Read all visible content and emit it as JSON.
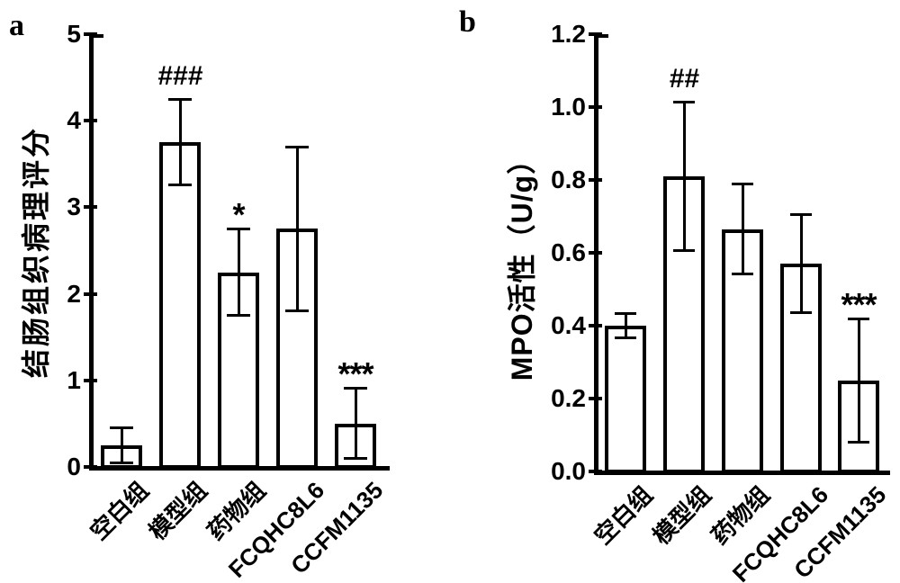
{
  "figure_bg": "#ffffff",
  "ink_color": "#000000",
  "chart_data": [
    {
      "type": "bar",
      "panel_label": "a",
      "ylabel": "结肠组织病理评分",
      "xlabel": "",
      "categories": [
        "空白组",
        "模型组",
        "药物组",
        "FCQHC8L6",
        "CCFM1135"
      ],
      "values": [
        0.25,
        3.75,
        2.25,
        2.75,
        0.5
      ],
      "errors": [
        0.21,
        0.5,
        0.5,
        0.95,
        0.41
      ],
      "annotations": [
        "",
        "###",
        "*",
        "",
        "***"
      ],
      "ylim": [
        0,
        5
      ],
      "yticks": [
        0,
        1,
        2,
        3,
        4,
        5
      ],
      "ytick_labels": [
        "0",
        "1",
        "2",
        "3",
        "4",
        "5"
      ],
      "bar_fill": "#ffffff",
      "bar_border": "#000000",
      "legend": "none",
      "grid": false
    },
    {
      "type": "bar",
      "panel_label": "b",
      "ylabel": "MPO活性（U/g）",
      "xlabel": "",
      "categories": [
        "空白组",
        "模型组",
        "药物组",
        "FCQHC8L6",
        "CCFM1135"
      ],
      "values": [
        0.4,
        0.81,
        0.665,
        0.57,
        0.25
      ],
      "errors": [
        0.035,
        0.205,
        0.125,
        0.135,
        0.17
      ],
      "annotations": [
        "",
        "##",
        "",
        "",
        "***"
      ],
      "ylim": [
        0,
        1.2
      ],
      "yticks": [
        0,
        0.2,
        0.4,
        0.6,
        0.8,
        1.0,
        1.2
      ],
      "ytick_labels": [
        "0.0",
        "0.2",
        "0.4",
        "0.6",
        "0.8",
        "1.0",
        "1.2"
      ],
      "bar_fill": "#ffffff",
      "bar_border": "#000000",
      "legend": "none",
      "grid": false
    }
  ]
}
